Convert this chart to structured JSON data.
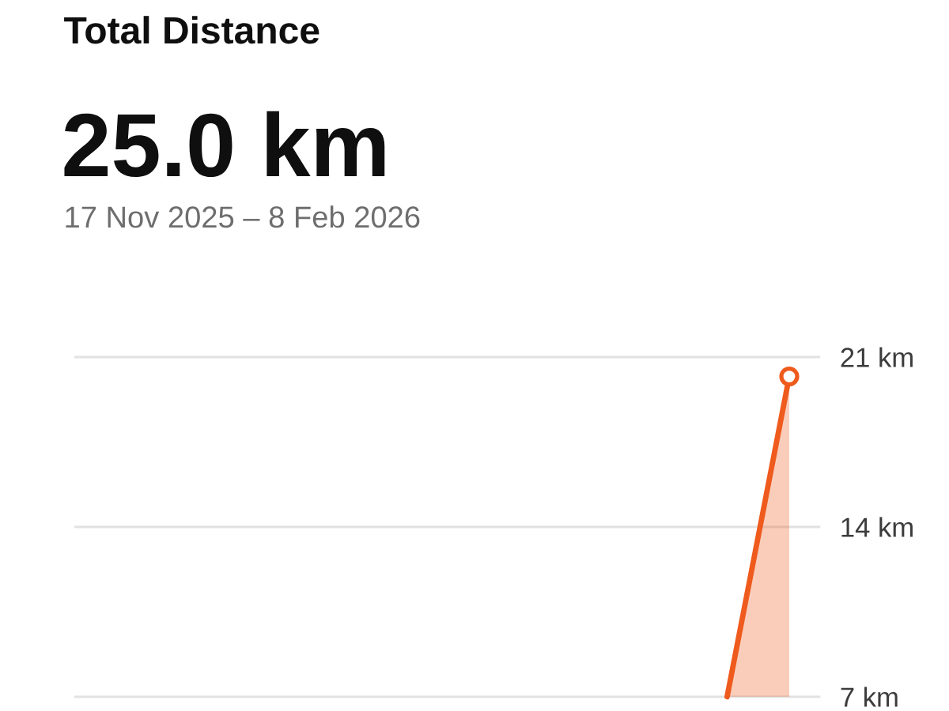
{
  "chart_data": {
    "type": "area",
    "title": "Total Distance",
    "subtitle": "25.0 km",
    "annotations": [
      "17 Nov 2025 – 8 Feb 2026"
    ],
    "categories": [
      null,
      null,
      null,
      null,
      null,
      null,
      null,
      null,
      null,
      null,
      null,
      null
    ],
    "series": [
      {
        "color": "#ef5a1d",
        "values": [
          null,
          null,
          null,
          null,
          null,
          null,
          null,
          null,
          null,
          null,
          7,
          20.2
        ]
      }
    ],
    "ylim": [
      7,
      21
    ],
    "yticks": [
      {
        "value": 7,
        "label": "7 km"
      },
      {
        "value": 14,
        "label": "14 km"
      },
      {
        "value": 21,
        "label": "21 km"
      }
    ],
    "grid": "y",
    "tick_labels": "y",
    "marker": "circle"
  }
}
